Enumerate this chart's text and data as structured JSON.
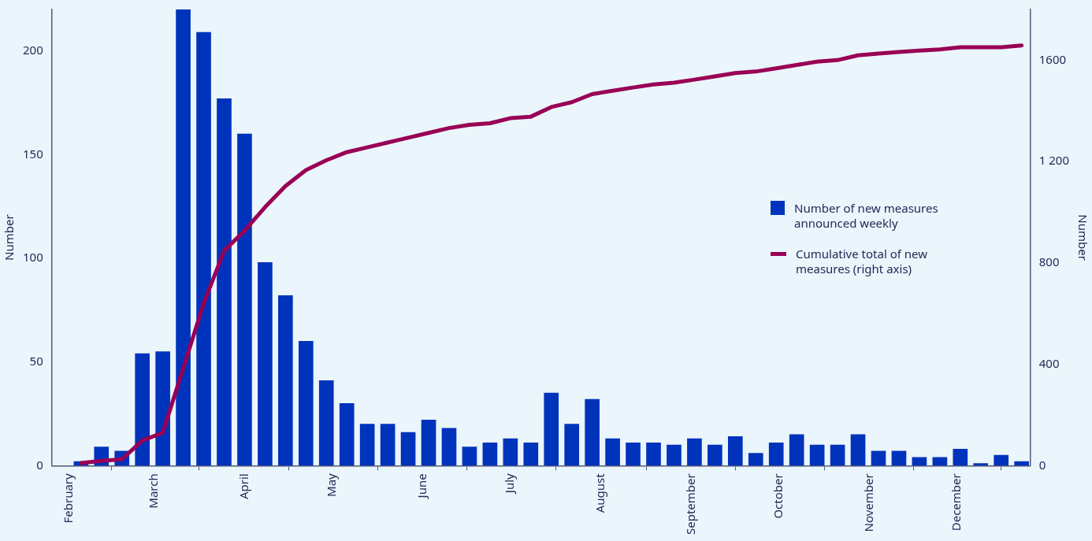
{
  "chart_data": {
    "type": "bar",
    "ylabel": "Number",
    "y2label": "Number",
    "x": [
      "--02-05",
      "--02-12",
      "--02-19",
      "--02-26",
      "--03-04",
      "--03-11",
      "--03-18",
      "--03-25",
      "--04-01",
      "--04-08",
      "--04-15",
      "--04-22",
      "--04-29",
      "--05-06",
      "--05-13",
      "--05-20",
      "--05-27",
      "--06-03",
      "--06-10",
      "--06-17",
      "--06-24",
      "--07-01",
      "--07-08",
      "--07-15",
      "--07-22",
      "--07-29",
      "--08-05",
      "--08-12",
      "--08-19",
      "--08-26",
      "--09-02",
      "--09-09",
      "--09-16",
      "--09-23",
      "--09-30",
      "--10-07",
      "--10-14",
      "--10-21",
      "--10-28",
      "--11-04",
      "--11-11",
      "--11-18",
      "--11-25",
      "--12-02",
      "--12-09",
      "--12-16",
      "--12-23"
    ],
    "series": [
      {
        "name": "Number of new measures announced weekly",
        "color": "#0033bb",
        "values": [
          2,
          9,
          7,
          54,
          55,
          220,
          209,
          177,
          160,
          98,
          82,
          60,
          41,
          30,
          20,
          20,
          16,
          22,
          18,
          9,
          11,
          13,
          11,
          35,
          20,
          32,
          13,
          11,
          11,
          10,
          13,
          10,
          14,
          6,
          11,
          15,
          10,
          10,
          15,
          7,
          7,
          4,
          4,
          8,
          1,
          5,
          2
        ]
      },
      {
        "name": "Cumulative total of new measures (right axis)",
        "color": "#990055",
        "type": "line",
        "axis": "y2",
        "values": [
          10,
          19,
          25,
          99,
          130,
          385,
          640,
          848,
          927,
          1020,
          1103,
          1166,
          1205,
          1237,
          1256,
          1275,
          1294,
          1313,
          1332,
          1345,
          1351,
          1371,
          1377,
          1415,
          1434,
          1466,
          1479,
          1492,
          1504,
          1511,
          1523,
          1536,
          1549,
          1555,
          1568,
          1581,
          1594,
          1600,
          1619,
          1626,
          1632,
          1638,
          1642,
          1651,
          1651,
          1651,
          1658
        ]
      }
    ],
    "xlim": [
      "--01-26",
      "--12-26"
    ],
    "xticks": [
      {
        "value": "--02-01",
        "label": "February"
      },
      {
        "value": "--03-01",
        "label": "March"
      },
      {
        "value": "--04-01",
        "label": "April"
      },
      {
        "value": "--05-01",
        "label": "May"
      },
      {
        "value": "--06-01",
        "label": "June"
      },
      {
        "value": "--07-01",
        "label": "July"
      },
      {
        "value": "--08-01",
        "label": "August"
      },
      {
        "value": "--09-01",
        "label": "September"
      },
      {
        "value": "--10-01",
        "label": "October"
      },
      {
        "value": "--11-01",
        "label": "November"
      },
      {
        "value": "--12-01",
        "label": "December"
      }
    ],
    "ylim": [
      0,
      220
    ],
    "yticks": [
      0,
      50,
      100,
      150,
      200
    ],
    "y2lim": [
      0,
      1800
    ],
    "y2ticks": [
      0,
      400,
      800,
      {
        "value": 1200,
        "label": "1 200"
      },
      1600
    ],
    "grid": false,
    "legend": "right",
    "marker": "none",
    "line_style": "solid"
  }
}
